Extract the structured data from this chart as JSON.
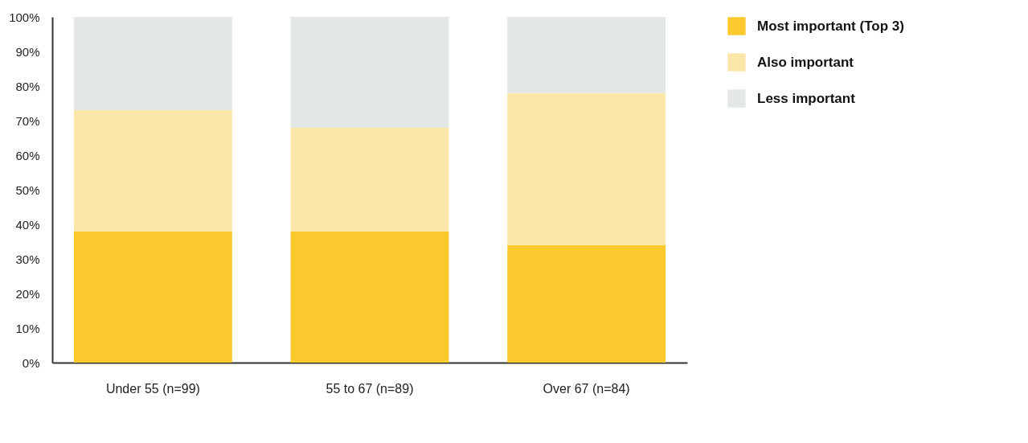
{
  "chart_data": {
    "type": "bar",
    "stacked": true,
    "categories": [
      "Under 55 (n=99)",
      "55 to 67 (n=89)",
      "Over 67 (n=84)"
    ],
    "series": [
      {
        "name": "Most important (Top 3)",
        "color": "#fcc92f",
        "values": [
          38,
          38,
          34
        ]
      },
      {
        "name": "Also important",
        "color": "#fbe6aa",
        "values": [
          35,
          30,
          44
        ]
      },
      {
        "name": "Less important",
        "color": "#e4e7e7",
        "values": [
          27,
          32,
          22
        ]
      }
    ],
    "ylim": [
      0,
      100
    ],
    "yticks": [
      {
        "value": 0,
        "label": "0%"
      },
      {
        "value": 10,
        "label": "10%"
      },
      {
        "value": 20,
        "label": "20%"
      },
      {
        "value": 30,
        "label": "30%"
      },
      {
        "value": 40,
        "label": "40%"
      },
      {
        "value": 50,
        "label": "50%"
      },
      {
        "value": 60,
        "label": "60%"
      },
      {
        "value": 70,
        "label": "70%"
      },
      {
        "value": 80,
        "label": "80%"
      },
      {
        "value": 90,
        "label": "90%"
      },
      {
        "value": 100,
        "label": "100%"
      }
    ],
    "grid": false,
    "legend": "top right"
  }
}
